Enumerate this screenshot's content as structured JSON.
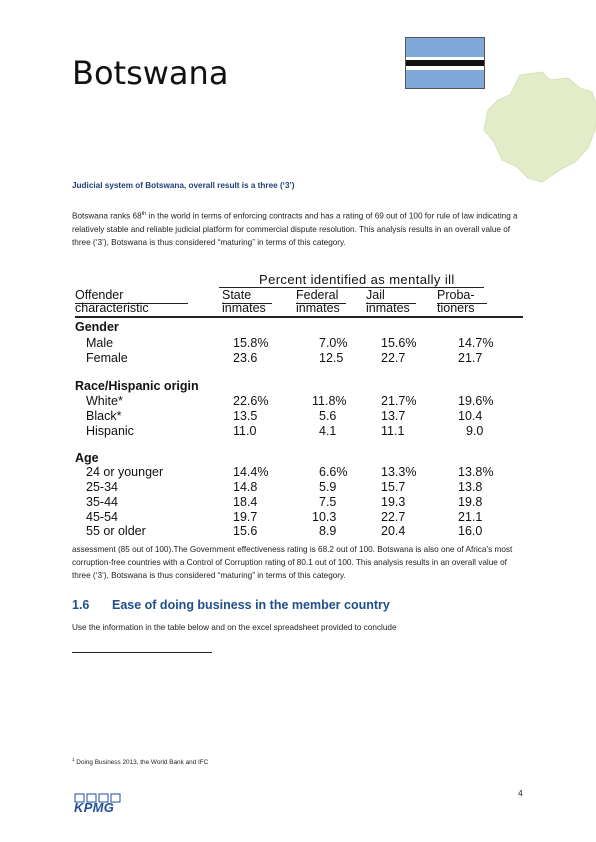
{
  "page": {
    "country_title": "Botswana",
    "page_number": "4",
    "logo_text": "KPMG"
  },
  "flag": {
    "icon": "botswana-flag-icon",
    "colors": {
      "blue": "#7ea9d8",
      "white": "#ffffff",
      "black": "#111111"
    }
  },
  "map": {
    "icon": "botswana-map-icon",
    "color": "#e3ecc9"
  },
  "section": {
    "heading": "Judicial system of Botswana, overall result is a three (‘3’)",
    "para1_before_sup": "Botswana ranks 68",
    "para1_sup": "th",
    "para1_after_sup": " in the world in terms of enforcing contracts and has a rating of 69 out of 100 for rule of law indicating a relatively stable and reliable judicial platform for commercial dispute resolution. This analysis results in an overall value of three (‘3’), Botswana is thus considered “maturing” in terms of this category.",
    "para2": "assessment (85 out of 100).The Government effectiveness rating is 68.2 out of 100.  Botswana is also one of Africa’s most corruption-free countries with a Control of Corruption rating of 80.1 out of 100. This analysis results in an overall value of three (‘3’), Botswana is thus considered “maturing” in terms of this category."
  },
  "table": {
    "super_header": "Percent identified as mentally ill",
    "columns": [
      {
        "line1": "Offender",
        "line2": "characteristic"
      },
      {
        "line1": "State",
        "line2": "inmates"
      },
      {
        "line1": "Federal",
        "line2": "inmates"
      },
      {
        "line1": "Jail",
        "line2": "inmates"
      },
      {
        "line1": "Proba-",
        "line2": "tioners"
      }
    ],
    "groups": [
      {
        "name": "Gender",
        "rows": [
          {
            "label": "Male",
            "values": [
              "15.8%",
              "7.0%",
              "15.6%",
              "14.7%"
            ]
          },
          {
            "label": "Female",
            "values": [
              "23.6",
              "12.5",
              "22.7",
              "21.7"
            ]
          }
        ]
      },
      {
        "name": "Race/Hispanic origin",
        "rows": [
          {
            "label": "White*",
            "values": [
              "22.6%",
              "11.8%",
              "21.7%",
              "19.6%"
            ]
          },
          {
            "label": "Black*",
            "values": [
              "13.5",
              "5.6",
              "13.7",
              "10.4"
            ]
          },
          {
            "label": "Hispanic",
            "values": [
              "11.0",
              "4.1",
              "11.1",
              "9.0"
            ]
          }
        ]
      },
      {
        "name": "Age",
        "rows": [
          {
            "label": "24 or younger",
            "values": [
              "14.4%",
              "6.6%",
              "13.3%",
              "13.8%"
            ]
          },
          {
            "label": "25-34",
            "values": [
              "14.8",
              "5.9",
              "15.7",
              "13.8"
            ]
          },
          {
            "label": "35-44",
            "values": [
              "18.4",
              "7.5",
              "19.3",
              "19.8"
            ]
          },
          {
            "label": "45-54",
            "values": [
              "19.7",
              "10.3",
              "22.7",
              "21.1"
            ]
          },
          {
            "label": "55 or older",
            "values": [
              "15.6",
              "8.9",
              "20.4",
              "16.0"
            ]
          }
        ]
      }
    ]
  },
  "subsection": {
    "number": "1.6",
    "title": "Ease of doing business in the member country",
    "text": "Use the information in the table below and on the excel spreadsheet provided to conclude"
  },
  "footnote": {
    "marker": "1",
    "text": " Doing Business 2013, the World Bank and IFC"
  }
}
